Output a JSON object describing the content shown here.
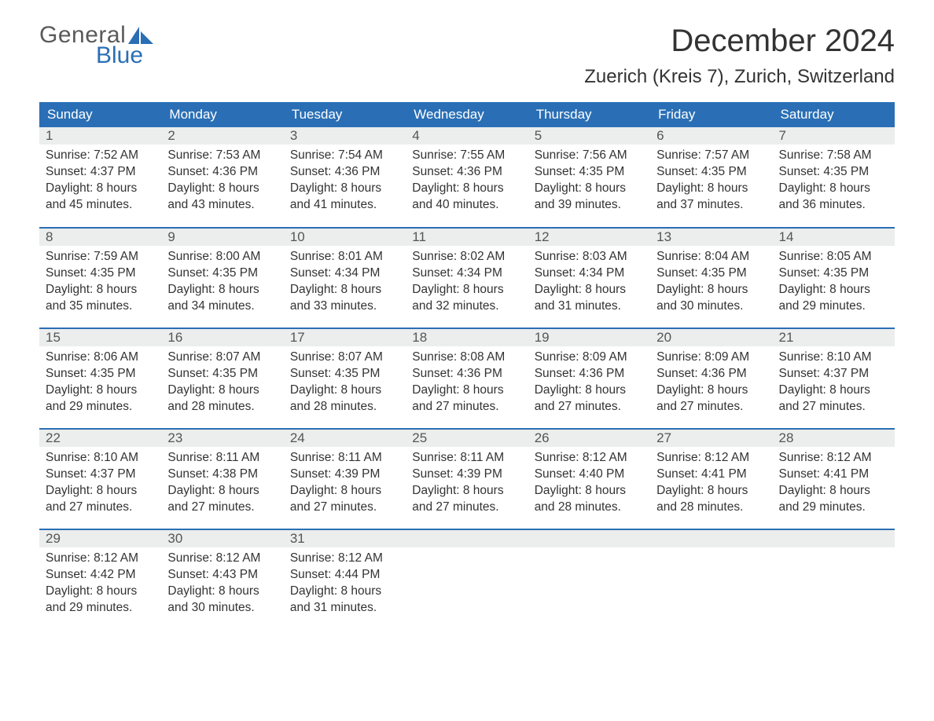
{
  "brand": {
    "word1": "General",
    "word2": "Blue",
    "logo_color": "#2a6fb5",
    "text_gray": "#5a5a5a"
  },
  "title": "December 2024",
  "location": "Zuerich (Kreis 7), Zurich, Switzerland",
  "colors": {
    "header_bg": "#2a6fb5",
    "header_text": "#ffffff",
    "daynum_bg": "#eceded",
    "rule": "#2a6fb5",
    "body_text": "#333333",
    "page_bg": "#ffffff"
  },
  "fonts": {
    "title_pt": 40,
    "location_pt": 24,
    "dayhead_pt": 17,
    "cell_pt": 15.5
  },
  "layout": {
    "columns": 7,
    "rows": 5,
    "start_weekday": "Sunday"
  },
  "weekdays": [
    "Sunday",
    "Monday",
    "Tuesday",
    "Wednesday",
    "Thursday",
    "Friday",
    "Saturday"
  ],
  "days": [
    {
      "n": "1",
      "sunrise": "7:52 AM",
      "sunset": "4:37 PM",
      "daylight": "8 hours and 45 minutes."
    },
    {
      "n": "2",
      "sunrise": "7:53 AM",
      "sunset": "4:36 PM",
      "daylight": "8 hours and 43 minutes."
    },
    {
      "n": "3",
      "sunrise": "7:54 AM",
      "sunset": "4:36 PM",
      "daylight": "8 hours and 41 minutes."
    },
    {
      "n": "4",
      "sunrise": "7:55 AM",
      "sunset": "4:36 PM",
      "daylight": "8 hours and 40 minutes."
    },
    {
      "n": "5",
      "sunrise": "7:56 AM",
      "sunset": "4:35 PM",
      "daylight": "8 hours and 39 minutes."
    },
    {
      "n": "6",
      "sunrise": "7:57 AM",
      "sunset": "4:35 PM",
      "daylight": "8 hours and 37 minutes."
    },
    {
      "n": "7",
      "sunrise": "7:58 AM",
      "sunset": "4:35 PM",
      "daylight": "8 hours and 36 minutes."
    },
    {
      "n": "8",
      "sunrise": "7:59 AM",
      "sunset": "4:35 PM",
      "daylight": "8 hours and 35 minutes."
    },
    {
      "n": "9",
      "sunrise": "8:00 AM",
      "sunset": "4:35 PM",
      "daylight": "8 hours and 34 minutes."
    },
    {
      "n": "10",
      "sunrise": "8:01 AM",
      "sunset": "4:34 PM",
      "daylight": "8 hours and 33 minutes."
    },
    {
      "n": "11",
      "sunrise": "8:02 AM",
      "sunset": "4:34 PM",
      "daylight": "8 hours and 32 minutes."
    },
    {
      "n": "12",
      "sunrise": "8:03 AM",
      "sunset": "4:34 PM",
      "daylight": "8 hours and 31 minutes."
    },
    {
      "n": "13",
      "sunrise": "8:04 AM",
      "sunset": "4:35 PM",
      "daylight": "8 hours and 30 minutes."
    },
    {
      "n": "14",
      "sunrise": "8:05 AM",
      "sunset": "4:35 PM",
      "daylight": "8 hours and 29 minutes."
    },
    {
      "n": "15",
      "sunrise": "8:06 AM",
      "sunset": "4:35 PM",
      "daylight": "8 hours and 29 minutes."
    },
    {
      "n": "16",
      "sunrise": "8:07 AM",
      "sunset": "4:35 PM",
      "daylight": "8 hours and 28 minutes."
    },
    {
      "n": "17",
      "sunrise": "8:07 AM",
      "sunset": "4:35 PM",
      "daylight": "8 hours and 28 minutes."
    },
    {
      "n": "18",
      "sunrise": "8:08 AM",
      "sunset": "4:36 PM",
      "daylight": "8 hours and 27 minutes."
    },
    {
      "n": "19",
      "sunrise": "8:09 AM",
      "sunset": "4:36 PM",
      "daylight": "8 hours and 27 minutes."
    },
    {
      "n": "20",
      "sunrise": "8:09 AM",
      "sunset": "4:36 PM",
      "daylight": "8 hours and 27 minutes."
    },
    {
      "n": "21",
      "sunrise": "8:10 AM",
      "sunset": "4:37 PM",
      "daylight": "8 hours and 27 minutes."
    },
    {
      "n": "22",
      "sunrise": "8:10 AM",
      "sunset": "4:37 PM",
      "daylight": "8 hours and 27 minutes."
    },
    {
      "n": "23",
      "sunrise": "8:11 AM",
      "sunset": "4:38 PM",
      "daylight": "8 hours and 27 minutes."
    },
    {
      "n": "24",
      "sunrise": "8:11 AM",
      "sunset": "4:39 PM",
      "daylight": "8 hours and 27 minutes."
    },
    {
      "n": "25",
      "sunrise": "8:11 AM",
      "sunset": "4:39 PM",
      "daylight": "8 hours and 27 minutes."
    },
    {
      "n": "26",
      "sunrise": "8:12 AM",
      "sunset": "4:40 PM",
      "daylight": "8 hours and 28 minutes."
    },
    {
      "n": "27",
      "sunrise": "8:12 AM",
      "sunset": "4:41 PM",
      "daylight": "8 hours and 28 minutes."
    },
    {
      "n": "28",
      "sunrise": "8:12 AM",
      "sunset": "4:41 PM",
      "daylight": "8 hours and 29 minutes."
    },
    {
      "n": "29",
      "sunrise": "8:12 AM",
      "sunset": "4:42 PM",
      "daylight": "8 hours and 29 minutes."
    },
    {
      "n": "30",
      "sunrise": "8:12 AM",
      "sunset": "4:43 PM",
      "daylight": "8 hours and 30 minutes."
    },
    {
      "n": "31",
      "sunrise": "8:12 AM",
      "sunset": "4:44 PM",
      "daylight": "8 hours and 31 minutes."
    }
  ],
  "labels": {
    "sunrise": "Sunrise: ",
    "sunset": "Sunset: ",
    "daylight": "Daylight: "
  }
}
